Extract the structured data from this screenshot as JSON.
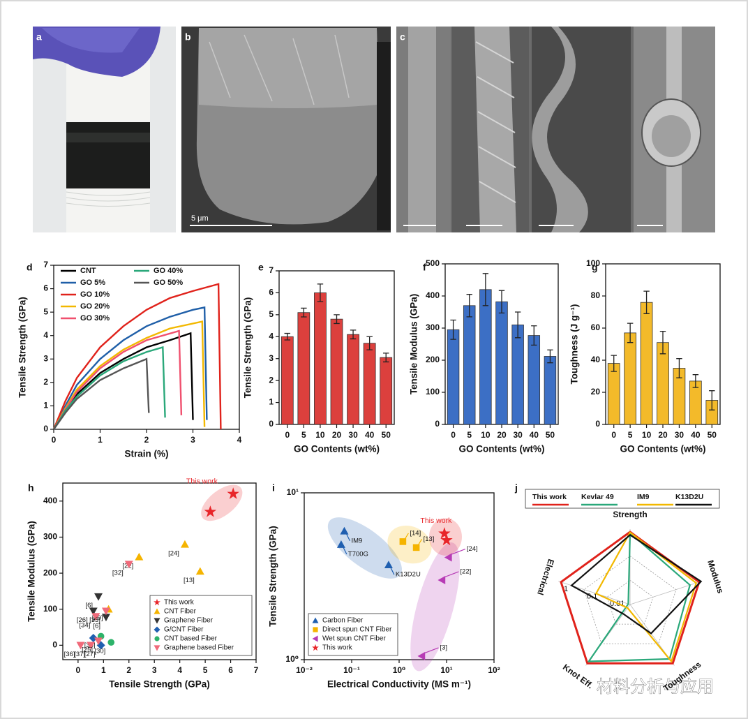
{
  "photos": [
    {
      "label": "a"
    },
    {
      "label": "b",
      "scale_bar": "5 μm"
    },
    {
      "label": "c"
    }
  ],
  "watermark": "材料分析与应用",
  "chart_data": [
    {
      "label": "d",
      "type": "line",
      "xlabel": "Strain (%)",
      "ylabel": "Tensile Strength (GPa)",
      "xlim": [
        0,
        4
      ],
      "xticks": [
        0,
        1,
        2,
        3,
        4
      ],
      "ylim": [
        0,
        7
      ],
      "yticks": [
        0,
        1,
        2,
        3,
        4,
        5,
        6,
        7
      ],
      "series": [
        {
          "name": "CNT",
          "color": "#000000",
          "x": [
            0,
            0.25,
            0.5,
            1,
            1.5,
            2,
            2.5,
            2.95,
            3.0
          ],
          "values": [
            0,
            0.8,
            1.5,
            2.4,
            3.0,
            3.5,
            3.8,
            4.1,
            0.4
          ]
        },
        {
          "name": "GO 5%",
          "color": "#1f5fa8",
          "x": [
            0,
            0.25,
            0.5,
            1,
            1.5,
            2,
            2.5,
            3,
            3.25,
            3.3
          ],
          "values": [
            0,
            1.0,
            1.9,
            3.0,
            3.8,
            4.4,
            4.8,
            5.1,
            5.2,
            0.4
          ]
        },
        {
          "name": "GO 10%",
          "color": "#e0221b",
          "x": [
            0,
            0.25,
            0.5,
            1,
            1.5,
            2,
            2.5,
            3,
            3.55,
            3.6
          ],
          "values": [
            0,
            1.2,
            2.2,
            3.5,
            4.4,
            5.1,
            5.6,
            5.9,
            6.2,
            0
          ]
        },
        {
          "name": "GO 20%",
          "color": "#f2b800",
          "x": [
            0,
            0.25,
            0.5,
            1,
            1.5,
            2,
            2.5,
            3.2,
            3.25
          ],
          "values": [
            0,
            0.9,
            1.7,
            2.7,
            3.4,
            3.9,
            4.3,
            4.6,
            0.1
          ]
        },
        {
          "name": "GO 30%",
          "color": "#f0506e",
          "x": [
            0,
            0.25,
            0.5,
            1,
            1.5,
            2,
            2.7,
            2.75
          ],
          "values": [
            0,
            0.85,
            1.6,
            2.6,
            3.3,
            3.8,
            4.2,
            0.6
          ]
        },
        {
          "name": "GO 40%",
          "color": "#2aa87a",
          "x": [
            0,
            0.25,
            0.5,
            1,
            1.5,
            2,
            2.35,
            2.4
          ],
          "values": [
            0,
            0.8,
            1.4,
            2.3,
            2.9,
            3.3,
            3.5,
            0.5
          ]
        },
        {
          "name": "GO 50%",
          "color": "#555555",
          "x": [
            0,
            0.25,
            0.5,
            1,
            1.5,
            2.0,
            2.05
          ],
          "values": [
            0,
            0.7,
            1.3,
            2.1,
            2.6,
            3.0,
            0.7
          ]
        }
      ]
    },
    {
      "label": "e",
      "type": "bar",
      "xlabel": "GO Contents (wt%)",
      "ylabel": "Tensile Strength (GPa)",
      "color": "#d9302c",
      "categories": [
        "0",
        "5",
        "10",
        "20",
        "30",
        "40",
        "50"
      ],
      "values": [
        4.0,
        5.1,
        6.0,
        4.8,
        4.1,
        3.7,
        3.05
      ],
      "errors": [
        0.15,
        0.2,
        0.4,
        0.2,
        0.2,
        0.3,
        0.2
      ],
      "ylim": [
        0,
        7
      ],
      "yticks": [
        0,
        1,
        2,
        3,
        4,
        5,
        6,
        7
      ]
    },
    {
      "label": "f",
      "type": "bar",
      "xlabel": "GO Contents (wt%)",
      "ylabel": "Tensile Modulus (GPa)",
      "color": "#2b63c0",
      "categories": [
        "0",
        "5",
        "10",
        "20",
        "30",
        "40",
        "50"
      ],
      "values": [
        295,
        370,
        420,
        382,
        310,
        277,
        212
      ],
      "errors": [
        30,
        35,
        50,
        35,
        40,
        30,
        20
      ],
      "ylim": [
        0,
        500
      ],
      "yticks": [
        0,
        100,
        200,
        300,
        400,
        500
      ]
    },
    {
      "label": "g",
      "type": "bar",
      "xlabel": "GO Contents (wt%)",
      "ylabel": "Toughness (J g⁻¹)",
      "color": "#f2b418",
      "categories": [
        "0",
        "5",
        "10",
        "20",
        "30",
        "40",
        "50"
      ],
      "values": [
        38,
        57,
        76,
        51,
        35,
        27,
        15
      ],
      "errors": [
        5,
        6,
        7,
        7,
        6,
        4,
        6
      ],
      "ylim": [
        0,
        100
      ],
      "yticks": [
        0,
        20,
        40,
        60,
        80,
        100
      ]
    },
    {
      "label": "h",
      "type": "scatter",
      "xlabel": "Tensile Strength (GPa)",
      "ylabel": "Tensile Modulus (GPa)",
      "legend": "lower right",
      "xlim": [
        -0.6,
        7
      ],
      "xticks": [
        0,
        1,
        2,
        3,
        4,
        5,
        6,
        7
      ],
      "ylim": [
        -40,
        450
      ],
      "yticks": [
        0,
        100,
        200,
        300,
        400
      ],
      "series": [
        {
          "name": "This work",
          "color": "#e8262a",
          "marker": "star",
          "highlight": true,
          "x": [
            5.2,
            6.1
          ],
          "values": [
            370,
            420
          ]
        },
        {
          "name": "CNT Fiber",
          "color": "#f5b400",
          "marker": "tri-up",
          "x": [
            2.4,
            4.2,
            4.8,
            1.2
          ],
          "values": [
            245,
            280,
            205,
            100
          ],
          "labels": [
            "[22]",
            "[24]",
            "[13]",
            "[29]"
          ]
        },
        {
          "name": "Graphene Fiber",
          "color": "#333333",
          "marker": "tri-down",
          "x": [
            0.8,
            1.1,
            0.6
          ],
          "values": [
            135,
            78,
            95
          ],
          "labels": [
            "[6]",
            "[6]",
            "[26]"
          ]
        },
        {
          "name": "G/CNT Fiber",
          "color": "#1f5fb0",
          "marker": "diamond",
          "x": [
            0.9,
            0.6
          ],
          "values": [
            0,
            20
          ],
          "labels": [
            "[27]",
            null
          ]
        },
        {
          "name": "CNT based Fiber",
          "color": "#2db36a",
          "marker": "circle",
          "x": [
            1.3,
            0.9
          ],
          "values": [
            8,
            25
          ],
          "labels": [
            "[30]",
            "[35]"
          ]
        },
        {
          "name": "Graphene based Fiber",
          "color": "#f06a7a",
          "marker": "tri-down",
          "x": [
            2.0,
            0.7,
            0.1,
            0.5,
            0.8,
            1.1
          ],
          "values": [
            225,
            80,
            0,
            0,
            12,
            95
          ],
          "labels": [
            "[32]",
            "[34]",
            "[36]",
            "[37]",
            "[25]",
            "[33]"
          ]
        }
      ]
    },
    {
      "label": "i",
      "type": "scatter",
      "xlabel": "Electrical Conductivity (MS m⁻¹)",
      "ylabel": "Tensile Strength (GPa)",
      "legend": "lower left",
      "xscale": "log",
      "yscale": "log",
      "xlim": [
        0.01,
        100
      ],
      "xticks": [
        {
          "value": 0.01,
          "label": "10⁻²"
        },
        {
          "value": 0.1,
          "label": "10⁻¹"
        },
        {
          "value": 1,
          "label": "10⁰"
        },
        {
          "value": 10,
          "label": "10¹"
        },
        {
          "value": 100,
          "label": "10²"
        }
      ],
      "ylim": [
        1,
        10
      ],
      "yticks": [
        {
          "value": 1,
          "label": "10⁰"
        },
        {
          "value": 10,
          "label": "10¹"
        }
      ],
      "series": [
        {
          "name": "Carbon Fiber",
          "color": "#1f5fb0",
          "marker": "tri-up",
          "highlight": true,
          "x": [
            0.07,
            0.06,
            0.6
          ],
          "values": [
            5.9,
            4.9,
            3.7
          ],
          "labels": [
            "IM9",
            "T700G",
            "K13D2U"
          ]
        },
        {
          "name": "Direct spun CNT Fiber",
          "color": "#f5b400",
          "marker": "square",
          "highlight": true,
          "x": [
            1.2,
            2.3
          ],
          "values": [
            5.1,
            4.7
          ],
          "labels": [
            "[14]",
            "[13]"
          ]
        },
        {
          "name": "Wet spun CNT Fiber",
          "color": "#b73bb5",
          "marker": "tri-left",
          "highlight": true,
          "x": [
            11,
            8,
            3
          ],
          "values": [
            4.1,
            3.0,
            1.05
          ],
          "labels": [
            "[24]",
            "[22]",
            "[3]"
          ]
        },
        {
          "name": "This work",
          "color": "#e8262a",
          "marker": "star",
          "highlight": true,
          "x": [
            9,
            10
          ],
          "values": [
            5.7,
            5.2
          ]
        }
      ]
    },
    {
      "label": "j",
      "type": "radar",
      "axes": [
        "Strength",
        "Modulus",
        "Toughness",
        "Knot Eff.",
        "Electrical"
      ],
      "rscale": "log",
      "rlim": [
        0.001,
        1.3
      ],
      "rticks": [
        0.01,
        0.1,
        1
      ],
      "series": [
        {
          "name": "This work",
          "color": "#e0221b",
          "values": [
            1,
            1,
            1,
            1,
            1
          ]
        },
        {
          "name": "Kevlar 49",
          "color": "#2aa87a",
          "values": [
            0.9,
            0.4,
            0.6,
            0.8,
            0.0012
          ]
        },
        {
          "name": "IM9",
          "color": "#f2b800",
          "values": [
            0.95,
            0.75,
            0.8,
            0.0015,
            0.03
          ]
        },
        {
          "name": "K13D2U",
          "color": "#111111",
          "values": [
            0.75,
            1.2,
            0.03,
            0.003,
            0.35
          ]
        }
      ]
    }
  ]
}
